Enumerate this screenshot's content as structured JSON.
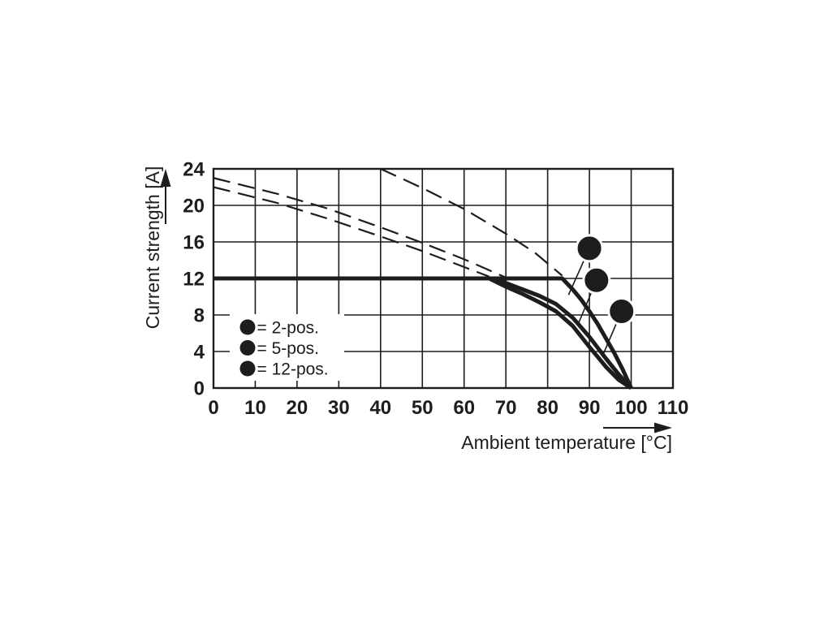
{
  "colors": {
    "ink": "#1d1d1b",
    "background": "#ffffff",
    "marker_fill": "#1d1d1b",
    "marker_text": "#ffffff",
    "legend_background": "#ffffff"
  },
  "chart_data": {
    "type": "line",
    "title": "",
    "xlabel": "Ambient temperature [°C]",
    "ylabel": "Current strength [A]",
    "xlim": [
      0,
      110
    ],
    "ylim": [
      0,
      24
    ],
    "xticks": [
      0,
      10,
      20,
      30,
      40,
      50,
      60,
      70,
      80,
      90,
      100,
      110
    ],
    "yticks": [
      0,
      4,
      8,
      12,
      16,
      20,
      24
    ],
    "grid": true,
    "legend_position": "inside-bottom-left",
    "series": [
      {
        "name": "curve-1-2pos",
        "label": "2-pos.",
        "line": "solid",
        "points": [
          [
            0,
            12
          ],
          [
            83.5,
            12
          ],
          [
            86,
            10.8
          ],
          [
            88,
            9.7
          ],
          [
            90,
            8.4
          ],
          [
            92,
            7.0
          ],
          [
            94,
            5.4
          ],
          [
            96,
            3.8
          ],
          [
            98,
            2.0
          ],
          [
            100,
            0
          ]
        ]
      },
      {
        "name": "curve-2-5pos",
        "label": "5-pos.",
        "line": "solid",
        "points": [
          [
            0,
            12
          ],
          [
            67,
            12
          ],
          [
            70,
            11.5
          ],
          [
            74,
            10.8
          ],
          [
            78,
            10.1
          ],
          [
            82,
            9.2
          ],
          [
            86,
            7.7
          ],
          [
            90,
            5.6
          ],
          [
            94,
            3.2
          ],
          [
            97,
            1.5
          ],
          [
            100,
            0
          ]
        ]
      },
      {
        "name": "curve-3-12pos",
        "label": "12-pos.",
        "line": "solid",
        "points": [
          [
            0,
            12
          ],
          [
            66,
            12
          ],
          [
            70,
            11.1
          ],
          [
            74,
            10.3
          ],
          [
            78,
            9.4
          ],
          [
            82,
            8.4
          ],
          [
            86,
            6.8
          ],
          [
            90,
            4.5
          ],
          [
            94,
            2.3
          ],
          [
            97,
            0.9
          ],
          [
            100,
            0
          ]
        ]
      },
      {
        "name": "extrapolation-1-2pos",
        "label": "2-pos. extrapolation",
        "line": "dashed",
        "points": [
          [
            40,
            24
          ],
          [
            50,
            21.9
          ],
          [
            60,
            19.6
          ],
          [
            70,
            16.9
          ],
          [
            77,
            14.8
          ],
          [
            83.5,
            12.3
          ]
        ]
      },
      {
        "name": "extrapolation-2-5pos",
        "label": "5-pos. extrapolation",
        "line": "dashed",
        "points": [
          [
            0,
            23
          ],
          [
            15,
            21.3
          ],
          [
            27,
            19.7
          ],
          [
            40,
            17.6
          ],
          [
            50,
            15.9
          ],
          [
            60,
            14.1
          ],
          [
            70,
            12.1
          ]
        ]
      },
      {
        "name": "extrapolation-3-12pos",
        "label": "12-pos. extrapolation",
        "line": "dashed",
        "points": [
          [
            0,
            22
          ],
          [
            15,
            20.3
          ],
          [
            27,
            18.6
          ],
          [
            40,
            16.6
          ],
          [
            50,
            15.0
          ],
          [
            58,
            13.6
          ],
          [
            66,
            12.2
          ]
        ]
      }
    ],
    "callouts": [
      {
        "symbol": "1",
        "center": [
          90.0,
          15.3
        ],
        "target": [
          85.0,
          10.2
        ]
      },
      {
        "symbol": "2",
        "center": [
          91.7,
          11.8
        ],
        "target": [
          87.3,
          7.0
        ]
      },
      {
        "symbol": "3",
        "center": [
          97.7,
          8.4
        ],
        "target": [
          93.4,
          3.8
        ]
      }
    ],
    "legend": [
      {
        "symbol": "1",
        "label": "= 2-pos."
      },
      {
        "symbol": "2",
        "label": "= 5-pos."
      },
      {
        "symbol": "3",
        "label": "= 12-pos."
      }
    ]
  }
}
